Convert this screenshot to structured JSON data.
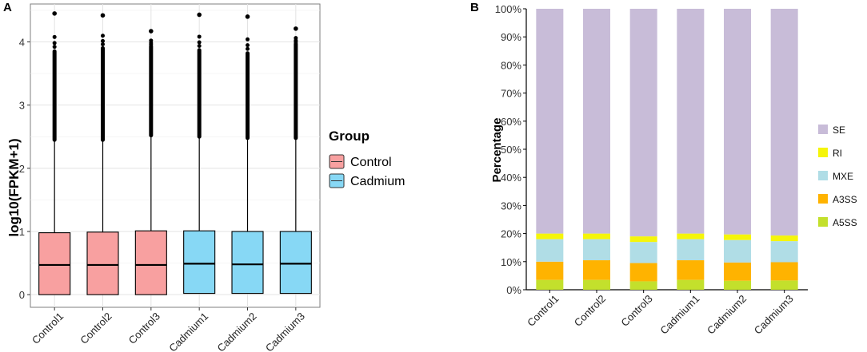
{
  "chart_data": [
    {
      "panel_label": "A",
      "type": "boxplot",
      "ylabel": "log10(FPKM+1)",
      "ylim": [
        -0.2,
        4.6
      ],
      "yticks": [
        0,
        1,
        2,
        3,
        4
      ],
      "grid": true,
      "categories": [
        "Control1",
        "Control2",
        "Control3",
        "Cadmium1",
        "Cadmium2",
        "Cadmium3"
      ],
      "groups": [
        "Control",
        "Control",
        "Control",
        "Cadmium",
        "Cadmium",
        "Cadmium"
      ],
      "boxes": [
        {
          "name": "Control1",
          "min": 0.0,
          "q1": 0.0,
          "median": 0.47,
          "q3": 0.98,
          "whisker_high": 2.45,
          "outlier_dense_to": 3.85,
          "max_outlier": 4.45
        },
        {
          "name": "Control2",
          "min": 0.0,
          "q1": 0.0,
          "median": 0.47,
          "q3": 0.99,
          "whisker_high": 2.45,
          "outlier_dense_to": 3.9,
          "max_outlier": 4.42
        },
        {
          "name": "Control3",
          "min": 0.0,
          "q1": 0.0,
          "median": 0.47,
          "q3": 1.01,
          "whisker_high": 2.52,
          "outlier_dense_to": 3.93,
          "max_outlier": 4.17
        },
        {
          "name": "Cadmium1",
          "min": 0.02,
          "q1": 0.02,
          "median": 0.49,
          "q3": 1.01,
          "whisker_high": 2.5,
          "outlier_dense_to": 3.87,
          "max_outlier": 4.43
        },
        {
          "name": "Cadmium2",
          "min": 0.02,
          "q1": 0.02,
          "median": 0.48,
          "q3": 1.0,
          "whisker_high": 2.48,
          "outlier_dense_to": 3.82,
          "max_outlier": 4.4
        },
        {
          "name": "Cadmium3",
          "min": 0.02,
          "q1": 0.02,
          "median": 0.49,
          "q3": 1.0,
          "whisker_high": 2.48,
          "outlier_dense_to": 3.97,
          "max_outlier": 4.21
        }
      ],
      "legend": {
        "title": "Group",
        "entries": [
          {
            "label": "Control",
            "color": "#f8a0a0"
          },
          {
            "label": "Cadmium",
            "color": "#87d8f5"
          }
        ]
      }
    },
    {
      "panel_label": "B",
      "type": "stacked-bar",
      "ylabel": "Percentage",
      "ylim": [
        0,
        100
      ],
      "yticks": [
        "0%",
        "10%",
        "20%",
        "30%",
        "40%",
        "50%",
        "60%",
        "70%",
        "80%",
        "90%",
        "100%"
      ],
      "categories": [
        "Control1",
        "Control2",
        "Control3",
        "Cadmium1",
        "Cadmium2",
        "Cadmium3"
      ],
      "series": [
        {
          "name": "A5SS",
          "color": "#c3e02c",
          "values": [
            3.5,
            3.5,
            3.0,
            3.5,
            3.2,
            3.3
          ]
        },
        {
          "name": "A3SS",
          "color": "#ffb300",
          "values": [
            6.5,
            7.0,
            6.5,
            7.0,
            6.5,
            6.5
          ]
        },
        {
          "name": "MXE",
          "color": "#b0dde6",
          "values": [
            8.0,
            7.5,
            7.5,
            7.5,
            8.0,
            7.5
          ]
        },
        {
          "name": "RI",
          "color": "#f5f50a",
          "values": [
            2.0,
            2.0,
            2.0,
            2.0,
            2.0,
            2.0
          ]
        },
        {
          "name": "SE",
          "color": "#c8bcd8",
          "values": [
            80.0,
            80.0,
            81.0,
            80.0,
            80.3,
            80.7
          ]
        }
      ],
      "legend_order": [
        "SE",
        "RI",
        "MXE",
        "A3SS",
        "A5SS"
      ]
    }
  ]
}
